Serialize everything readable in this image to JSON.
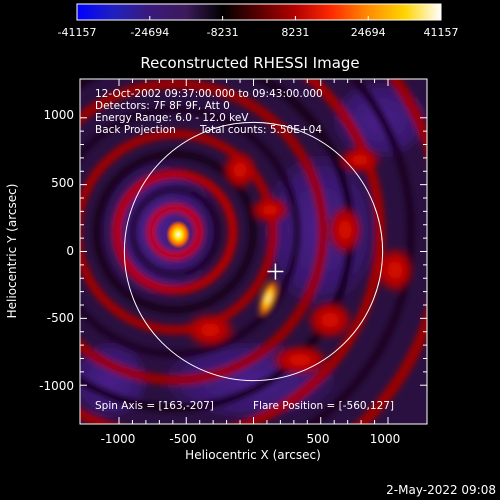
{
  "colorbar": {
    "ticks": [
      "-41157",
      "-24694",
      "-8231",
      "8231",
      "24694",
      "41157"
    ],
    "colormap": [
      "#0000ff",
      "#2020c0",
      "#3a1a7a",
      "#3c1a5a",
      "#000000",
      "#5a0000",
      "#b40000",
      "#ff2a00",
      "#ff8c00",
      "#ffd400",
      "#ffffff"
    ]
  },
  "plot": {
    "title": "Reconstructed RHESSI Image",
    "xlabel": "Heliocentric X (arcsec)",
    "ylabel": "Heliocentric Y (arcsec)",
    "xticks": [
      "-1000",
      "-500",
      "0",
      "500",
      "1000"
    ],
    "yticks": [
      "1000",
      "500",
      "0",
      "-500",
      "-1000"
    ],
    "xrange": [
      -1290,
      1290
    ],
    "yrange": [
      -1290,
      1290
    ],
    "solar_radius_arcsec": 960,
    "source_position": [
      -560,
      127
    ],
    "cross_position": [
      163,
      -150
    ],
    "info_lines": [
      "12-Oct-2002 09:37:00.000 to 09:43:00.000",
      "Detectors: 7F 8F 9F, Att 0",
      "Energy Range: 6.0 - 12.0 keV"
    ],
    "method": "Back Projection",
    "total_counts": "Total counts: 5.50E+04",
    "spin_axis": "Spin Axis = [163,-207]",
    "flare_position": "Flare Position = [-560,127]"
  },
  "timestamp": "2-May-2022 09:08"
}
